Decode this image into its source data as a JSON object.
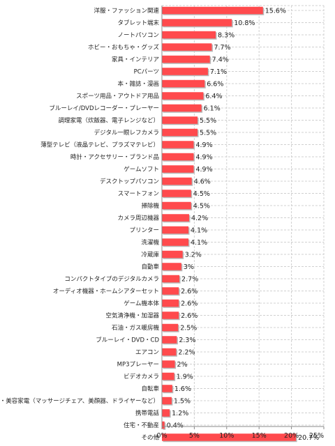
{
  "chart_data": {
    "type": "bar",
    "orientation": "horizontal",
    "categories": [
      "洋服・ファッション関連",
      "タブレット端末",
      "ノートパソコン",
      "ホビー・おもちゃ・グッズ",
      "家具・インテリア",
      "PCパーツ",
      "本・雑誌・漫画",
      "スポーツ用品・アウトドア用品",
      "ブルーレイ/DVDレコーダー・プレーヤー",
      "調理家電（炊飯器、電子レンジなど）",
      "デジタル一眼レフカメラ",
      "薄型テレビ（液晶テレビ、プラズマテレビ）",
      "時計・アクセサリー・ブランド品",
      "ゲームソフト",
      "デスクトップパソコン",
      "スマートフォン",
      "掃除機",
      "カメラ周辺機器",
      "プリンター",
      "洗濯機",
      "冷蔵庫",
      "自動車",
      "コンパクトタイプのデジタルカメラ",
      "オーディオ機器・ホームシアターセット",
      "ゲーム機本体",
      "空気清浄機・加湿器",
      "石油・ガス暖房機",
      "ブルーレイ・DVD・CD",
      "エアコン",
      "MP3プレーヤー",
      "ビデオカメラ",
      "自転車",
      "健康・美容家電（マッサージチェア、美顔器、ドライヤーなど）",
      "携帯電話",
      "住宅・不動産",
      "その他"
    ],
    "values": [
      15.6,
      10.8,
      8.3,
      7.7,
      7.4,
      7.1,
      6.6,
      6.4,
      6.1,
      5.5,
      5.5,
      4.9,
      4.9,
      4.9,
      4.6,
      4.5,
      4.5,
      4.2,
      4.1,
      4.1,
      3.2,
      3,
      2.7,
      2.6,
      2.6,
      2.6,
      2.5,
      2.3,
      2.2,
      2,
      1.9,
      1.6,
      1.5,
      1.2,
      0.4,
      20.7
    ],
    "value_labels": [
      "15.6%",
      "10.8%",
      "8.3%",
      "7.7%",
      "7.4%",
      "7.1%",
      "6.6%",
      "6.4%",
      "6.1%",
      "5.5%",
      "5.5%",
      "4.9%",
      "4.9%",
      "4.9%",
      "4.6%",
      "4.5%",
      "4.5%",
      "4.2%",
      "4.1%",
      "4.1%",
      "3.2%",
      "3%",
      "2.7%",
      "2.6%",
      "2.6%",
      "2.6%",
      "2.5%",
      "2.3%",
      "2.2%",
      "2%",
      "1.9%",
      "1.6%",
      "1.5%",
      "1.2%",
      "0.4%",
      "20.7%"
    ],
    "x_ticks": [
      "0%",
      "5%",
      "10%",
      "15%",
      "20%",
      "25%"
    ],
    "xlim": [
      0,
      25
    ],
    "grid": true,
    "colors": {
      "bar": "#ff4a4d",
      "bar_shadow": "#b8b8b8",
      "grid": "#d0d0d0",
      "axis": "#888888"
    }
  }
}
